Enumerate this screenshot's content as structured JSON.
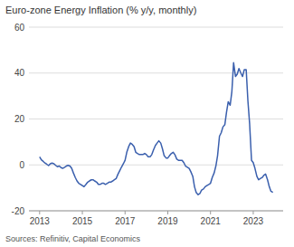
{
  "chart_data": {
    "type": "line",
    "title": "Euro-zone Energy Inflation (% y/y, monthly)",
    "annotations": [
      "Sources: Refinitiv, Capital Economics"
    ],
    "color": "#3a5fad",
    "grid": "y",
    "ylim": [
      -20,
      60
    ],
    "yticks": [
      -20,
      0,
      20,
      40,
      60
    ],
    "xlim": [
      2012.5,
      2024.4
    ],
    "xticks": [
      2013,
      2015,
      2017,
      2019,
      2021,
      2023
    ],
    "x": [
      2013.0,
      2013.08,
      2013.17,
      2013.25,
      2013.33,
      2013.42,
      2013.5,
      2013.58,
      2013.67,
      2013.75,
      2013.83,
      2013.92,
      2014.0,
      2014.08,
      2014.17,
      2014.25,
      2014.33,
      2014.42,
      2014.5,
      2014.58,
      2014.67,
      2014.75,
      2014.83,
      2014.92,
      2015.0,
      2015.08,
      2015.17,
      2015.25,
      2015.33,
      2015.42,
      2015.5,
      2015.58,
      2015.67,
      2015.75,
      2015.83,
      2015.92,
      2016.0,
      2016.08,
      2016.17,
      2016.25,
      2016.33,
      2016.42,
      2016.5,
      2016.58,
      2016.67,
      2016.75,
      2016.83,
      2016.92,
      2017.0,
      2017.08,
      2017.17,
      2017.25,
      2017.33,
      2017.42,
      2017.5,
      2017.58,
      2017.67,
      2017.75,
      2017.83,
      2017.92,
      2018.0,
      2018.08,
      2018.17,
      2018.25,
      2018.33,
      2018.42,
      2018.5,
      2018.58,
      2018.67,
      2018.75,
      2018.83,
      2018.92,
      2019.0,
      2019.08,
      2019.17,
      2019.25,
      2019.33,
      2019.42,
      2019.5,
      2019.58,
      2019.67,
      2019.75,
      2019.83,
      2019.92,
      2020.0,
      2020.08,
      2020.17,
      2020.25,
      2020.33,
      2020.42,
      2020.5,
      2020.58,
      2020.67,
      2020.75,
      2020.83,
      2020.92,
      2021.0,
      2021.08,
      2021.17,
      2021.25,
      2021.33,
      2021.42,
      2021.5,
      2021.58,
      2021.67,
      2021.75,
      2021.83,
      2021.92,
      2022.0,
      2022.08,
      2022.17,
      2022.25,
      2022.33,
      2022.42,
      2022.5,
      2022.58,
      2022.67,
      2022.75,
      2022.83,
      2022.92,
      2023.0,
      2023.08,
      2023.17,
      2023.25,
      2023.33,
      2023.42,
      2023.5,
      2023.58,
      2023.67,
      2023.75,
      2023.83,
      2023.92
    ],
    "values": [
      3.5,
      2.2,
      1.5,
      0.8,
      0.3,
      -0.3,
      0.5,
      0.8,
      0.5,
      -0.2,
      -0.8,
      -0.5,
      -1.2,
      -1.5,
      -1.0,
      -0.5,
      -0.2,
      -0.5,
      -1.5,
      -3.5,
      -5.5,
      -7.0,
      -8.0,
      -8.5,
      -9.0,
      -9.5,
      -8.5,
      -7.5,
      -7.0,
      -6.5,
      -6.5,
      -7.0,
      -7.5,
      -8.5,
      -8.5,
      -8.0,
      -8.0,
      -8.5,
      -8.0,
      -7.5,
      -7.5,
      -7.0,
      -6.5,
      -6.0,
      -4.0,
      -2.5,
      -1.0,
      0.5,
      2.0,
      5.5,
      8.0,
      9.5,
      9.0,
      8.0,
      5.5,
      5.0,
      4.5,
      4.5,
      4.5,
      5.0,
      4.5,
      3.5,
      3.5,
      4.5,
      6.5,
      8.5,
      9.5,
      10.5,
      9.5,
      7.0,
      4.0,
      3.0,
      3.0,
      4.0,
      5.0,
      5.5,
      4.5,
      2.5,
      2.0,
      2.0,
      2.0,
      1.0,
      -0.5,
      -1.0,
      -1.5,
      -3.0,
      -5.0,
      -9.5,
      -12.0,
      -13.0,
      -12.5,
      -11.0,
      -10.5,
      -9.5,
      -9.0,
      -8.5,
      -8.0,
      -5.5,
      -3.5,
      -0.5,
      4.0,
      12.5,
      14.0,
      16.5,
      17.5,
      23.0,
      27.5,
      26.0,
      32.0,
      44.5,
      38.5,
      39.5,
      42.0,
      40.0,
      38.5,
      41.5,
      41.5,
      28.0,
      18.0,
      2.0,
      1.0,
      -1.5,
      -5.0,
      -6.5,
      -6.0,
      -5.5,
      -4.5,
      -4.0,
      -6.5,
      -9.5,
      -11.5,
      -12.0
    ]
  }
}
